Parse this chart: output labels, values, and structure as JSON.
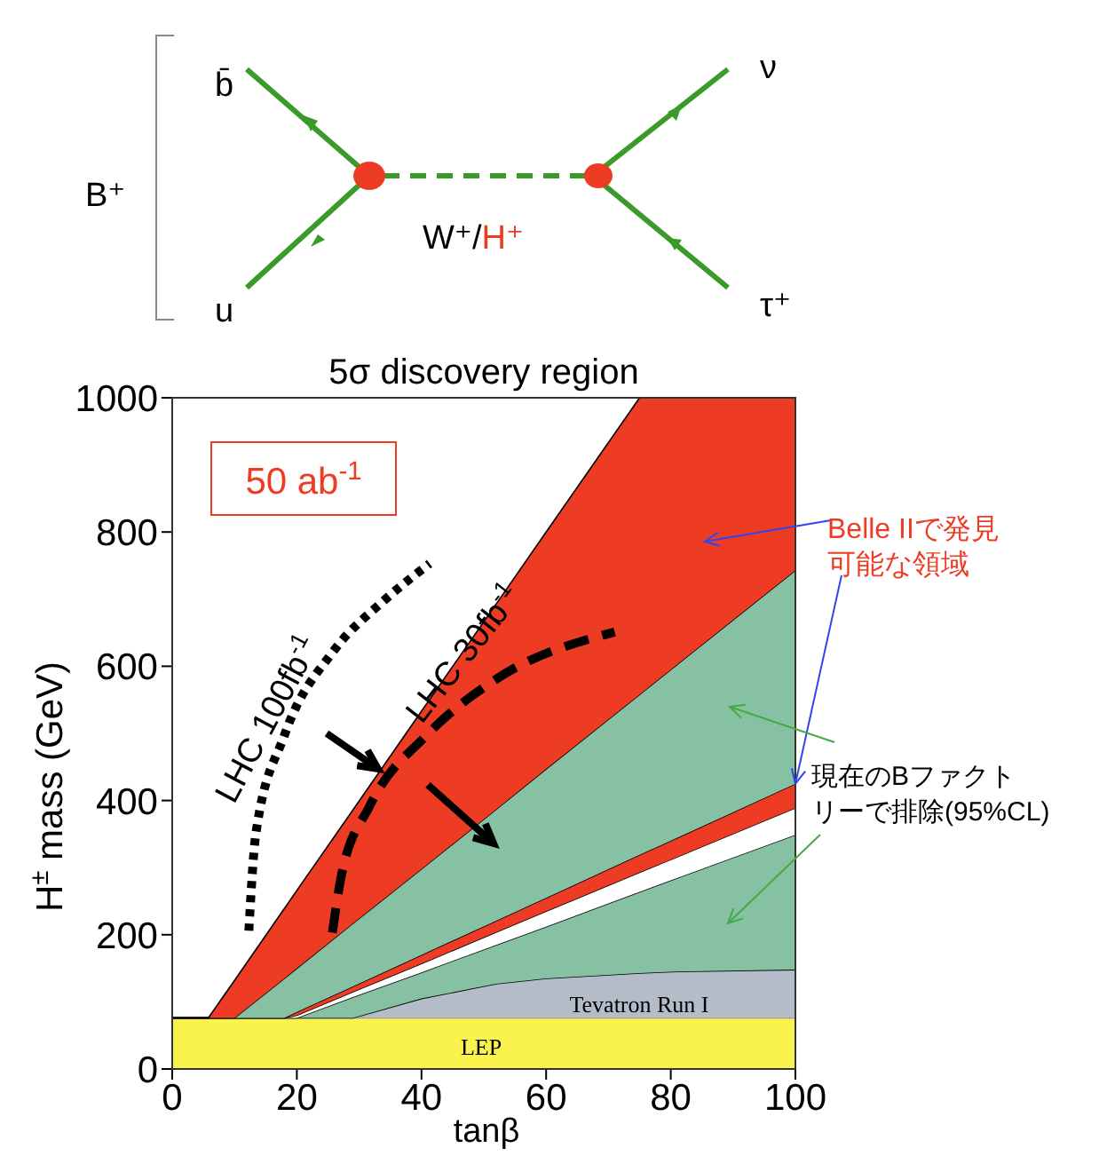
{
  "chart_data": {
    "type": "area",
    "title": "5σ discovery region",
    "xlabel": "tanβ",
    "ylabel": "H$^{±}$ mass (GeV)",
    "stacked": true,
    "x": [
      0,
      5.8,
      10,
      18,
      20,
      29,
      40,
      52,
      60,
      75,
      80,
      100
    ],
    "xlim": [
      0,
      100
    ],
    "xticks": [
      0,
      20,
      40,
      60,
      80,
      100
    ],
    "ylim": [
      0,
      1000
    ],
    "yticks": [
      0,
      200,
      400,
      600,
      800,
      1000
    ],
    "series": [
      {
        "name": "LEP",
        "color": "#faf34e",
        "values": [
          76,
          76,
          76,
          76,
          76,
          76,
          76,
          76,
          76,
          76,
          76,
          76
        ]
      },
      {
        "name": "Tevatron Run I",
        "color": "#b3bcc8",
        "values": [
          0,
          0,
          0,
          0,
          0,
          0,
          29,
          51,
          59,
          67,
          69,
          72
        ]
      },
      {
        "color": "#86c1a3",
        "values": [
          0,
          0,
          0,
          0,
          0,
          31,
          39,
          58,
          77,
          121,
          136,
          201
        ]
      },
      {
        "color": "#ffffff",
        "values": [
          0,
          0,
          0,
          0,
          4,
          8,
          13,
          19,
          23,
          29,
          31,
          40
        ]
      },
      {
        "color": "#ee3b24",
        "values": [
          0,
          0,
          0,
          0,
          5,
          8,
          13,
          17,
          20,
          26,
          28,
          36
        ]
      },
      {
        "color": "#86c1a3",
        "values": [
          0,
          0,
          0,
          59,
          65,
          94,
          128,
          166,
          192,
          239,
          255,
          318
        ]
      },
      {
        "color": "#ee3b24",
        "values": [
          0,
          0,
          56,
          104,
          116,
          169,
          235,
          306,
          353,
          442,
          405,
          257
        ]
      },
      {
        "type": "line",
        "name": "LHC 100fb$^{-1}$",
        "color": "#000000",
        "line_style": "dotted",
        "x": [
          12.3,
          13.4,
          18,
          26,
          34,
          41.3
        ],
        "values": [
          206,
          349,
          497,
          624,
          698,
          753
        ]
      },
      {
        "type": "line",
        "name": "LHC 30fb$^{-1}$",
        "color": "#000000",
        "line_style": "dashed",
        "x": [
          25.7,
          27.1,
          31.7,
          40.8,
          52.2,
          71
        ],
        "values": [
          203,
          286,
          392,
          497,
          582,
          651
        ]
      }
    ],
    "annotations": [
      "50 ab$^{-1}$",
      {
        "text": "Belle IIで発見可能な領域",
        "x": 100,
        "y": 425
      },
      "現在のBファクトリーで排除(95%CL)",
      "B⁺",
      "b̄",
      "u",
      "ν",
      "τ⁺",
      "W⁺/",
      "H⁺"
    ]
  }
}
